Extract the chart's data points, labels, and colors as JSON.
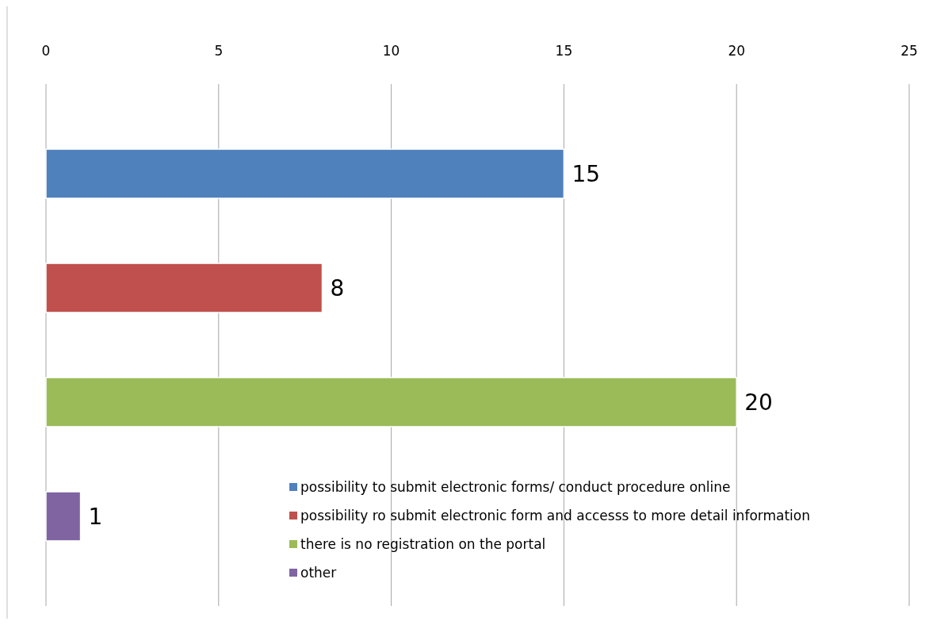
{
  "chart_data": {
    "type": "bar",
    "orientation": "horizontal",
    "categories": [
      null,
      null,
      null,
      null
    ],
    "series": [
      {
        "name": "possibility to submit electronic forms/ conduct procedure online",
        "color": "#4f81bd",
        "values": [
          15,
          null,
          null,
          null
        ]
      },
      {
        "name": "possibility ro submit electronic form and accesss to more detail information",
        "color": "#c0504d",
        "values": [
          null,
          8,
          null,
          null
        ]
      },
      {
        "name": "there is no registration on the portal",
        "color": "#9bbb59",
        "values": [
          null,
          null,
          20,
          null
        ]
      },
      {
        "name": "other",
        "color": "#8064a2",
        "values": [
          null,
          null,
          null,
          1
        ]
      }
    ],
    "xlim": [
      0,
      25
    ],
    "xticks": [
      0,
      5,
      10,
      15,
      20,
      25
    ],
    "grid": "x",
    "legend": "bottom right",
    "data_labels": true
  }
}
